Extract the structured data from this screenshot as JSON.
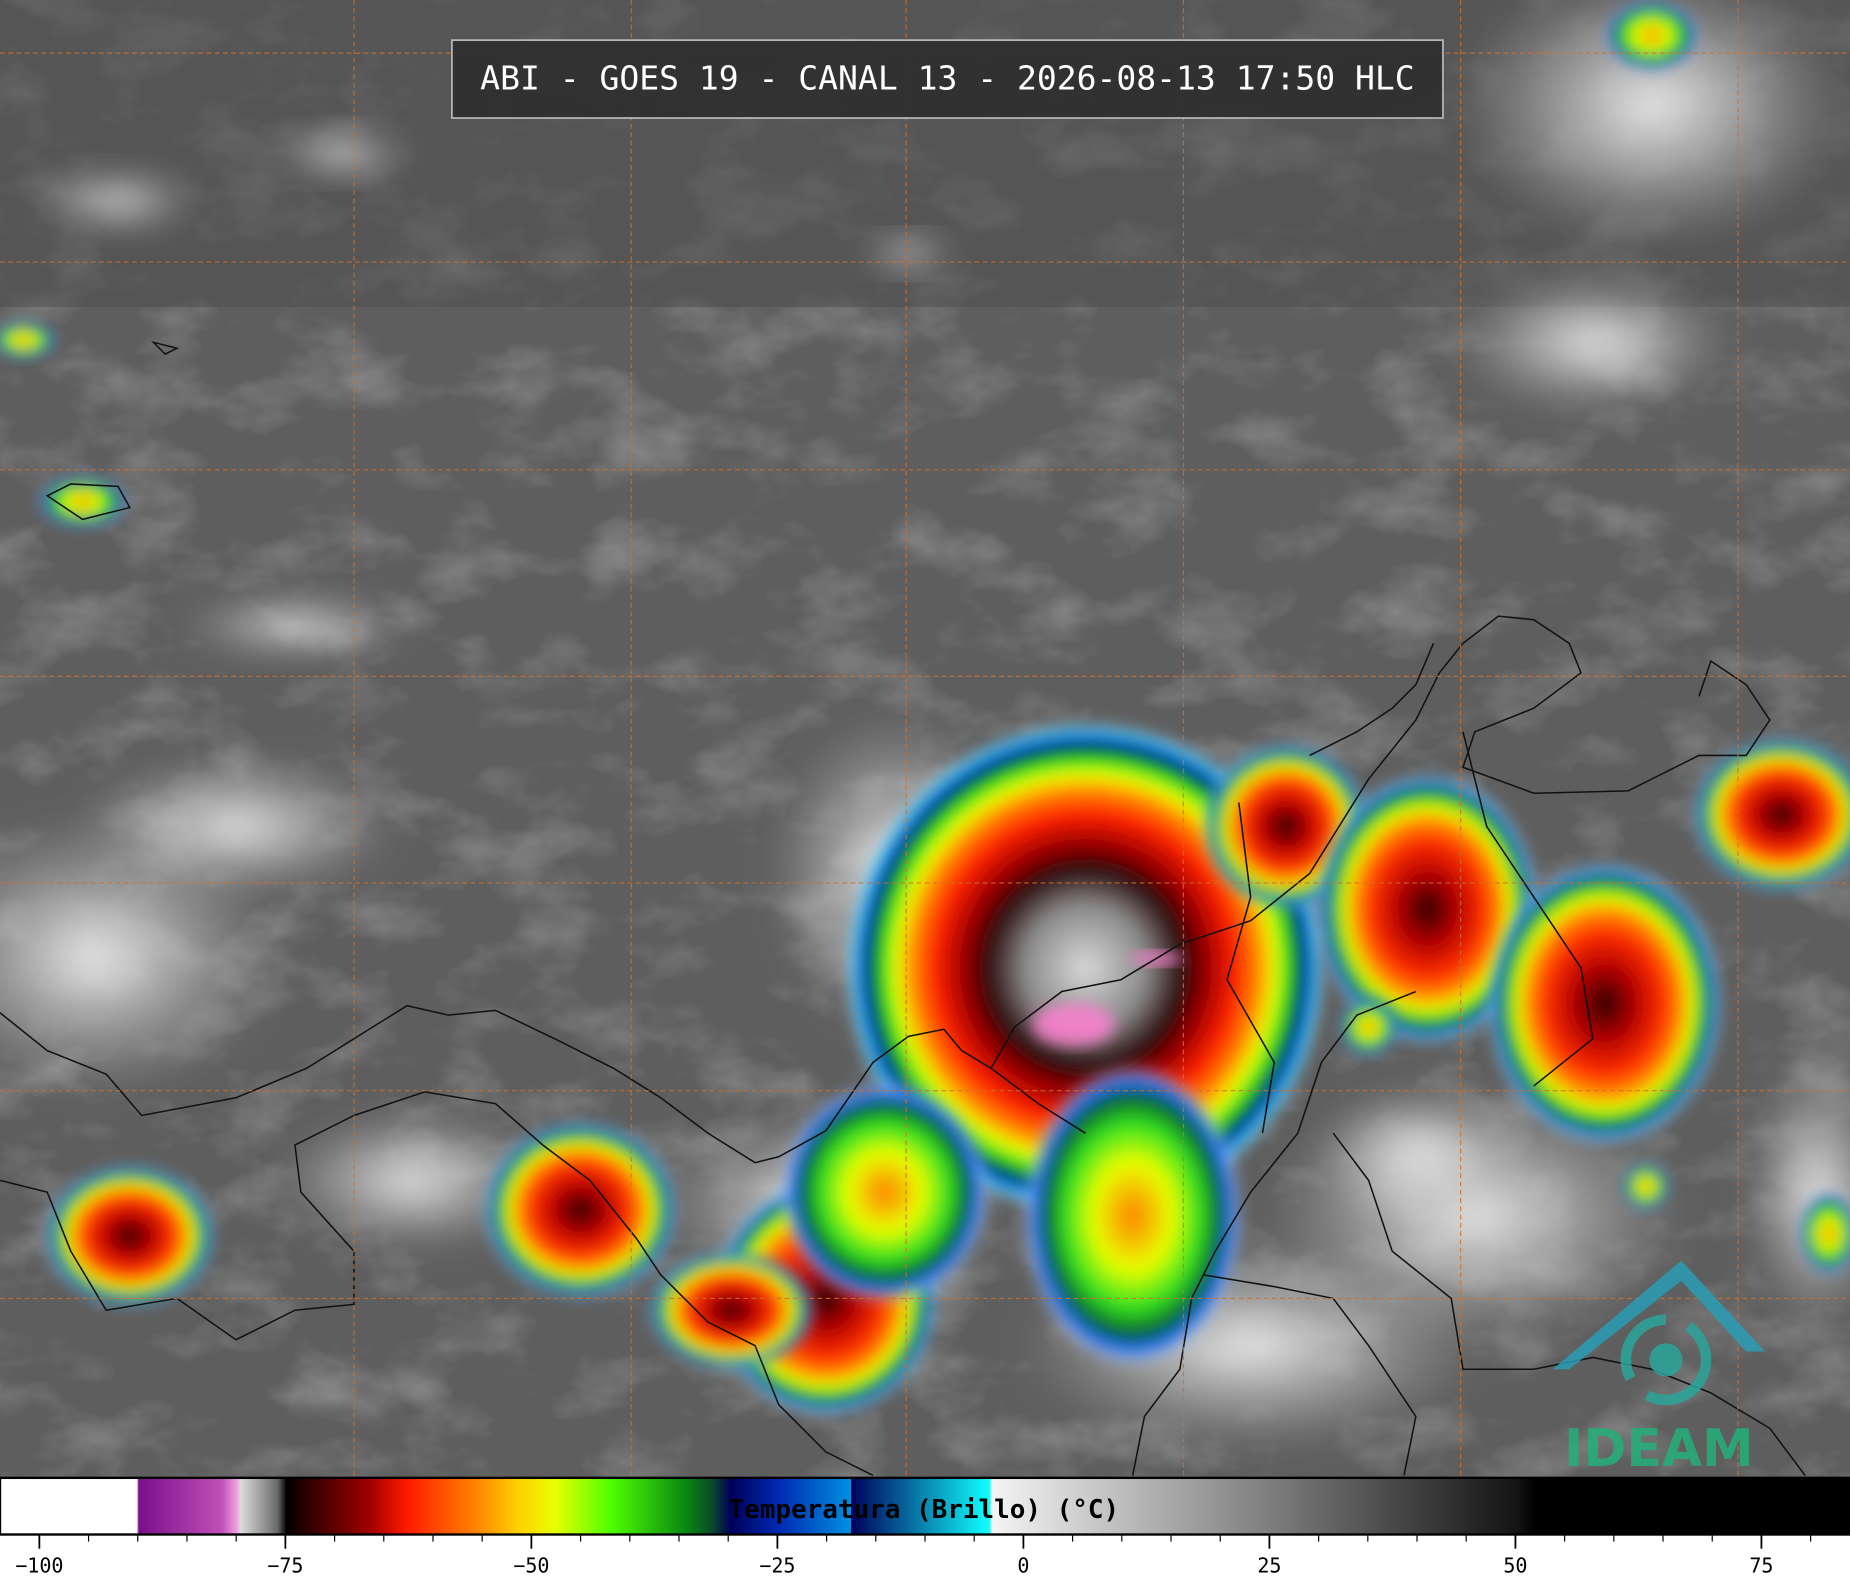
{
  "header": {
    "title": "ABI - GOES 19 - CANAL 13 - 2026-08-13 17:50 HLC"
  },
  "colorbar": {
    "label": "Temperatura (Brillo) (°C)",
    "xlim": [
      -104,
      84
    ],
    "xticks": [
      {
        "value": -100,
        "label": "−100"
      },
      {
        "value": -75,
        "label": "−75"
      },
      {
        "value": -50,
        "label": "−50"
      },
      {
        "value": -25,
        "label": "−25"
      },
      0,
      25,
      50,
      75
    ]
  },
  "logo": {
    "text": "IDEAM"
  }
}
